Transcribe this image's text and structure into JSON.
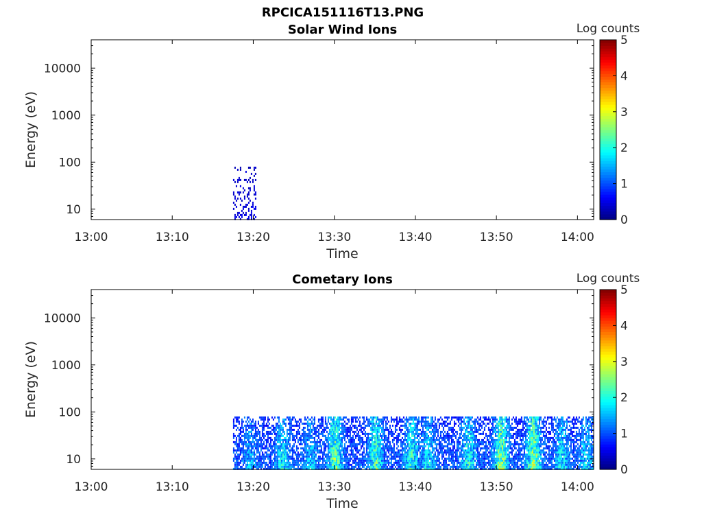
{
  "figure_title": "RPCICA151116T13.PNG",
  "chart_data": [
    {
      "type": "heatmap",
      "title": "Solar Wind Ions",
      "xlabel": "Time",
      "ylabel": "Energy (eV)",
      "x_ticks": [
        "13:00",
        "13:10",
        "13:20",
        "13:30",
        "13:40",
        "13:50",
        "14:00"
      ],
      "xlim": [
        "13:00",
        "14:02"
      ],
      "y_scale": "log",
      "y_ticks": [
        "10",
        "100",
        "1000",
        "10000"
      ],
      "ylim": [
        6,
        40000
      ],
      "colorbar": {
        "label": "Log counts",
        "ticks": [
          "0",
          "1",
          "2",
          "3",
          "4",
          "5"
        ],
        "range": [
          0,
          5
        ],
        "colormap": "jet"
      },
      "data_summary": "Sparse low counts (log counts ~0.3-0.8) between 13:17:30 and 13:20:20 at energies ~6-80 eV; no counts elsewhere",
      "blocks": [
        {
          "start": "13:17:30",
          "end": "13:20:20",
          "e_min": 6,
          "e_max": 80,
          "level": 0.5,
          "density": 0.35
        }
      ]
    },
    {
      "type": "heatmap",
      "title": "Cometary Ions",
      "xlabel": "Time",
      "ylabel": "Energy (eV)",
      "x_ticks": [
        "13:00",
        "13:10",
        "13:20",
        "13:30",
        "13:40",
        "13:50",
        "14:00"
      ],
      "xlim": [
        "13:00",
        "14:02"
      ],
      "y_scale": "log",
      "y_ticks": [
        "10",
        "100",
        "1000",
        "10000"
      ],
      "ylim": [
        6,
        40000
      ],
      "colorbar": {
        "label": "Log counts",
        "ticks": [
          "0",
          "1",
          "2",
          "3",
          "4",
          "5"
        ],
        "range": [
          0,
          5
        ],
        "colormap": "jet"
      },
      "data_summary": "Continuous counts from 13:17:30 to 14:02 at energies ~6-80 eV; peak log counts ~2.5-3 near 13:30, 13:35, 13:50 and 13:54",
      "blocks": [
        {
          "start": "13:17:30",
          "end": "14:02:00",
          "e_min": 6,
          "e_max": 80,
          "level": 1.1,
          "density": 0.85
        }
      ],
      "peaks": [
        {
          "time": "13:19:30",
          "level": 1.6
        },
        {
          "time": "13:23:30",
          "level": 1.9
        },
        {
          "time": "13:27:00",
          "level": 1.7
        },
        {
          "time": "13:30:00",
          "level": 2.6
        },
        {
          "time": "13:35:00",
          "level": 2.4
        },
        {
          "time": "13:39:30",
          "level": 2.2
        },
        {
          "time": "13:41:30",
          "level": 1.9
        },
        {
          "time": "13:46:30",
          "level": 2.1
        },
        {
          "time": "13:50:30",
          "level": 2.7
        },
        {
          "time": "13:54:30",
          "level": 2.8
        },
        {
          "time": "13:58:00",
          "level": 2.0
        },
        {
          "time": "14:01:00",
          "level": 1.8
        }
      ]
    }
  ]
}
